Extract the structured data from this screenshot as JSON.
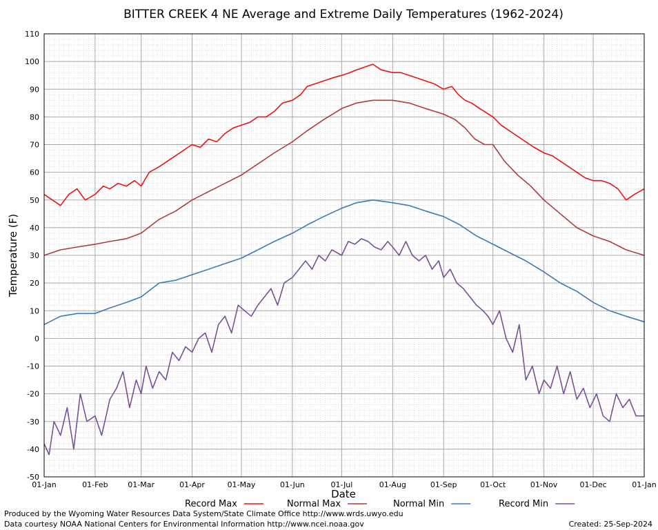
{
  "chart_data": {
    "type": "line",
    "title": "BITTER CREEK 4 NE Average and Extreme Daily Temperatures (1962-2024)",
    "xlabel": "Date",
    "ylabel": "Temperature (F)",
    "ylim": [
      -50,
      110
    ],
    "y_ticks": [
      -50,
      -40,
      -30,
      -20,
      -10,
      0,
      10,
      20,
      30,
      40,
      50,
      60,
      70,
      80,
      90,
      100,
      110
    ],
    "x_range_days": [
      0,
      365
    ],
    "x_ticks": [
      {
        "label": "01-Jan",
        "day": 0
      },
      {
        "label": "01-Feb",
        "day": 31
      },
      {
        "label": "01-Mar",
        "day": 59
      },
      {
        "label": "01-Apr",
        "day": 90
      },
      {
        "label": "01-May",
        "day": 120
      },
      {
        "label": "01-Jun",
        "day": 151
      },
      {
        "label": "01-Jul",
        "day": 181
      },
      {
        "label": "01-Aug",
        "day": 212
      },
      {
        "label": "01-Sep",
        "day": 243
      },
      {
        "label": "01-Oct",
        "day": 273
      },
      {
        "label": "01-Nov",
        "day": 304
      },
      {
        "label": "01-Dec",
        "day": 334
      },
      {
        "label": "01-Jan",
        "day": 365
      }
    ],
    "grid": true,
    "legend_position": "bottom",
    "series": [
      {
        "name": "Record Max",
        "color": "#ee1111",
        "x": [
          0,
          5,
          10,
          15,
          20,
          25,
          31,
          36,
          40,
          45,
          50,
          55,
          59,
          64,
          70,
          75,
          80,
          85,
          90,
          95,
          100,
          105,
          110,
          115,
          120,
          125,
          130,
          135,
          140,
          145,
          151,
          156,
          160,
          165,
          170,
          175,
          181,
          186,
          190,
          195,
          200,
          205,
          212,
          217,
          222,
          227,
          232,
          237,
          243,
          248,
          252,
          256,
          260,
          265,
          273,
          278,
          283,
          288,
          293,
          298,
          304,
          309,
          314,
          319,
          324,
          329,
          334,
          339,
          344,
          349,
          354,
          359,
          365
        ],
        "y": [
          52,
          50,
          48,
          52,
          54,
          50,
          52,
          55,
          54,
          56,
          55,
          57,
          55,
          60,
          62,
          64,
          66,
          68,
          70,
          69,
          72,
          71,
          74,
          76,
          77,
          78,
          80,
          80,
          82,
          85,
          86,
          88,
          91,
          92,
          93,
          94,
          95,
          96,
          97,
          98,
          99,
          97,
          96,
          96,
          95,
          94,
          93,
          92,
          90,
          91,
          88,
          86,
          85,
          83,
          80,
          77,
          75,
          73,
          71,
          69,
          67,
          66,
          64,
          62,
          60,
          58,
          57,
          57,
          56,
          54,
          50,
          52,
          54
        ]
      },
      {
        "name": "Normal Max",
        "color": "#b03a3a",
        "x": [
          0,
          10,
          20,
          31,
          40,
          50,
          59,
          70,
          80,
          90,
          100,
          110,
          120,
          130,
          140,
          151,
          160,
          170,
          181,
          190,
          200,
          212,
          222,
          232,
          243,
          250,
          256,
          262,
          268,
          273,
          280,
          288,
          296,
          304,
          314,
          324,
          334,
          344,
          354,
          365
        ],
        "y": [
          30,
          32,
          33,
          34,
          35,
          36,
          38,
          43,
          46,
          50,
          53,
          56,
          59,
          63,
          67,
          71,
          75,
          79,
          83,
          85,
          86,
          86,
          85,
          83,
          81,
          79,
          76,
          72,
          70,
          70,
          64,
          59,
          55,
          50,
          45,
          40,
          37,
          35,
          32,
          30
        ]
      },
      {
        "name": "Normal Min",
        "color": "#3a7ab8",
        "x": [
          0,
          10,
          20,
          31,
          40,
          50,
          59,
          70,
          80,
          90,
          100,
          110,
          120,
          130,
          140,
          151,
          160,
          170,
          181,
          190,
          200,
          212,
          222,
          232,
          243,
          253,
          263,
          273,
          283,
          293,
          304,
          314,
          324,
          334,
          344,
          354,
          365
        ],
        "y": [
          5,
          8,
          9,
          9,
          11,
          13,
          15,
          20,
          21,
          23,
          25,
          27,
          29,
          32,
          35,
          38,
          41,
          44,
          47,
          49,
          50,
          49,
          48,
          46,
          44,
          41,
          37,
          34,
          31,
          28,
          24,
          20,
          17,
          13,
          10,
          8,
          6
        ]
      },
      {
        "name": "Record Min",
        "color": "#765098",
        "x": [
          0,
          3,
          6,
          10,
          14,
          18,
          22,
          26,
          31,
          35,
          40,
          44,
          48,
          52,
          56,
          59,
          62,
          66,
          70,
          74,
          78,
          82,
          86,
          90,
          94,
          98,
          102,
          106,
          110,
          114,
          118,
          122,
          126,
          130,
          134,
          138,
          142,
          146,
          151,
          155,
          159,
          163,
          167,
          171,
          175,
          181,
          185,
          189,
          193,
          197,
          201,
          205,
          209,
          212,
          216,
          220,
          224,
          228,
          232,
          236,
          240,
          243,
          247,
          251,
          255,
          259,
          263,
          267,
          270,
          273,
          277,
          281,
          285,
          289,
          293,
          297,
          301,
          304,
          308,
          312,
          316,
          320,
          324,
          328,
          332,
          336,
          340,
          344,
          348,
          352,
          356,
          360,
          365
        ],
        "y": [
          -38,
          -42,
          -30,
          -35,
          -25,
          -40,
          -20,
          -30,
          -28,
          -35,
          -22,
          -18,
          -12,
          -25,
          -15,
          -20,
          -10,
          -18,
          -12,
          -15,
          -5,
          -8,
          -3,
          -5,
          0,
          2,
          -5,
          5,
          8,
          2,
          12,
          10,
          8,
          12,
          15,
          18,
          12,
          20,
          22,
          25,
          28,
          25,
          30,
          28,
          32,
          30,
          35,
          34,
          36,
          35,
          33,
          32,
          35,
          33,
          30,
          35,
          30,
          28,
          30,
          25,
          28,
          22,
          25,
          20,
          18,
          15,
          12,
          10,
          8,
          5,
          10,
          0,
          -5,
          5,
          -15,
          -10,
          -20,
          -15,
          -18,
          -10,
          -20,
          -12,
          -22,
          -18,
          -25,
          -20,
          -28,
          -30,
          -20,
          -25,
          -22,
          -28,
          -28
        ]
      }
    ]
  },
  "legend": {
    "items": [
      {
        "label": "Record Max",
        "color": "#ee1111"
      },
      {
        "label": "Normal Max",
        "color": "#b03a3a"
      },
      {
        "label": "Normal Min",
        "color": "#3a7ab8"
      },
      {
        "label": "Record Min",
        "color": "#765098"
      }
    ]
  },
  "footer": {
    "producer": "Produced by the Wyoming Water Resources Data System/State Climate Office http://www.wrds.uwyo.edu",
    "courtesy": "Data courtesy NOAA National Centers for Environmental Information http://www.ncei.noaa.gov",
    "created": "Created:  25-Sep-2024"
  }
}
